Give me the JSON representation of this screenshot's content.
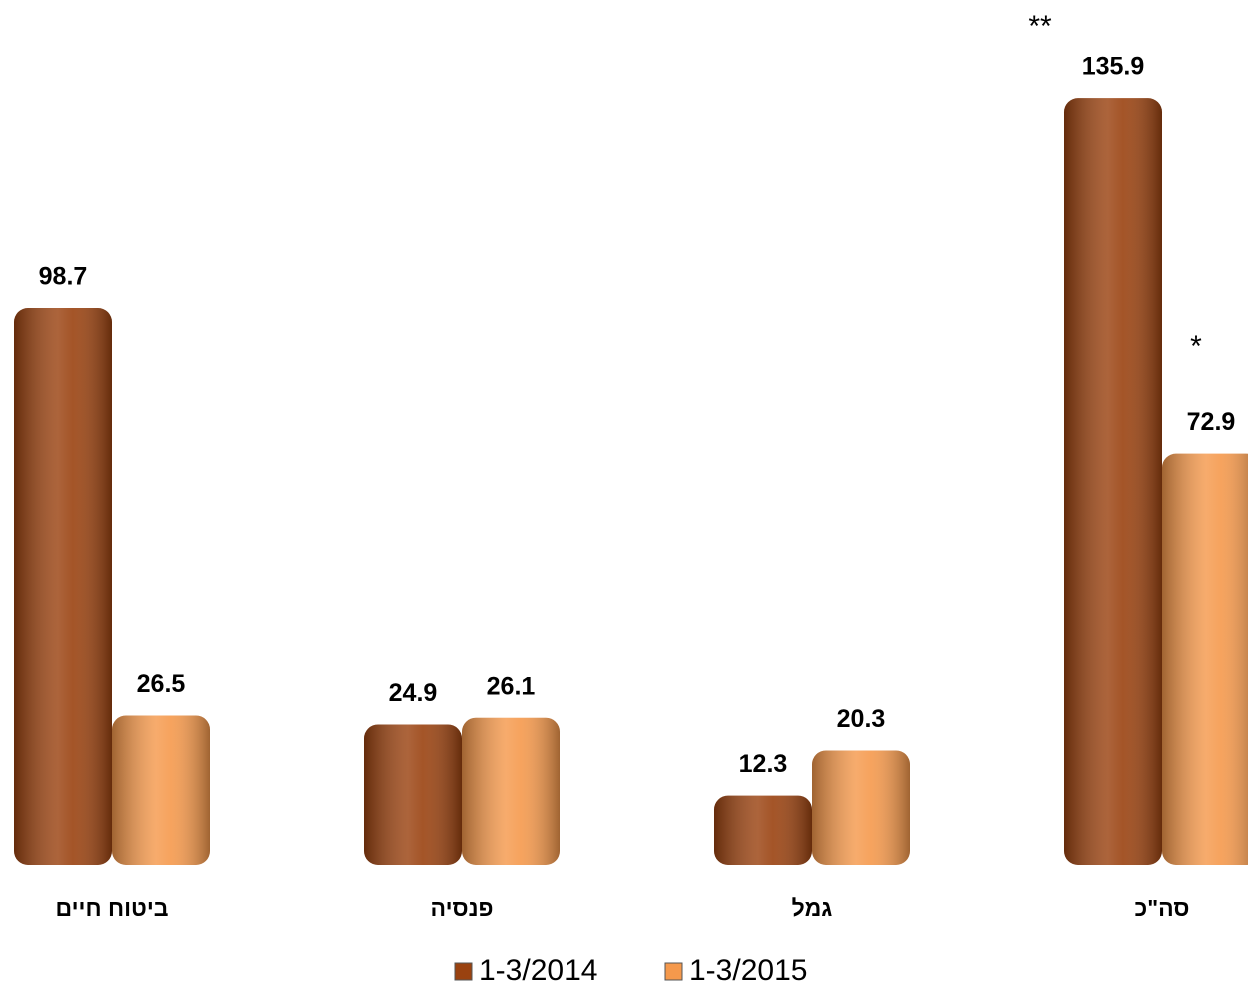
{
  "chart_data": {
    "type": "bar",
    "categories": [
      "ביטוח חיים",
      "פנסיה",
      "גמל",
      "סה\"כ"
    ],
    "series": [
      {
        "name": "1-3/2014",
        "color": "#9a4210",
        "values": [
          98.7,
          24.9,
          12.3,
          135.9
        ]
      },
      {
        "name": "1-3/2015",
        "color": "#f5994c",
        "values": [
          26.5,
          26.1,
          20.3,
          72.9
        ]
      }
    ],
    "annotations": [
      "**",
      "*"
    ],
    "ylim": [
      0,
      140
    ],
    "legend": "bottom"
  }
}
